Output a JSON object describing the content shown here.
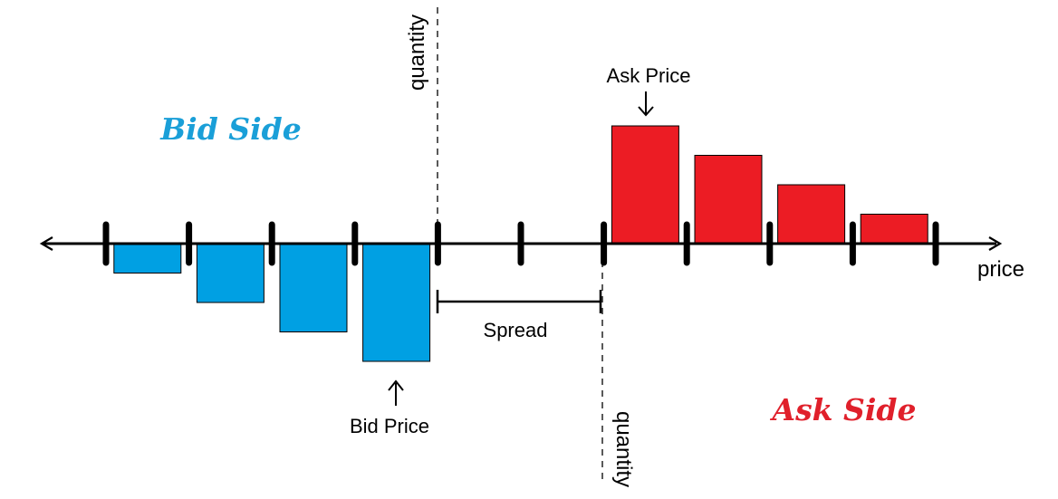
{
  "labels": {
    "bid_side": "Bid Side",
    "ask_side": "Ask Side",
    "bid_price": "Bid Price",
    "ask_price": "Ask Price",
    "spread": "Spread",
    "price_axis": "price",
    "quantity_axis_left": "quantity",
    "quantity_axis_right": "quantity"
  },
  "colors": {
    "bid": "#00a0e3",
    "ask": "#ec1c24",
    "axis": "#000000",
    "bid_side_text": "#1a9fd8",
    "ask_side_text": "#e0202b"
  },
  "chart_data": {
    "type": "bar",
    "ticks": 11,
    "bid_bars": [
      {
        "slot": 0,
        "quantity": 1
      },
      {
        "slot": 1,
        "quantity": 2
      },
      {
        "slot": 2,
        "quantity": 3
      },
      {
        "slot": 3,
        "quantity": 4
      }
    ],
    "ask_bars": [
      {
        "slot": 6,
        "quantity": 4
      },
      {
        "slot": 7,
        "quantity": 3
      },
      {
        "slot": 8,
        "quantity": 2
      },
      {
        "slot": 9,
        "quantity": 1
      }
    ],
    "bid_price_slot": 3,
    "ask_price_slot": 6,
    "spread_from_tick": 4,
    "spread_to_tick": 6
  }
}
